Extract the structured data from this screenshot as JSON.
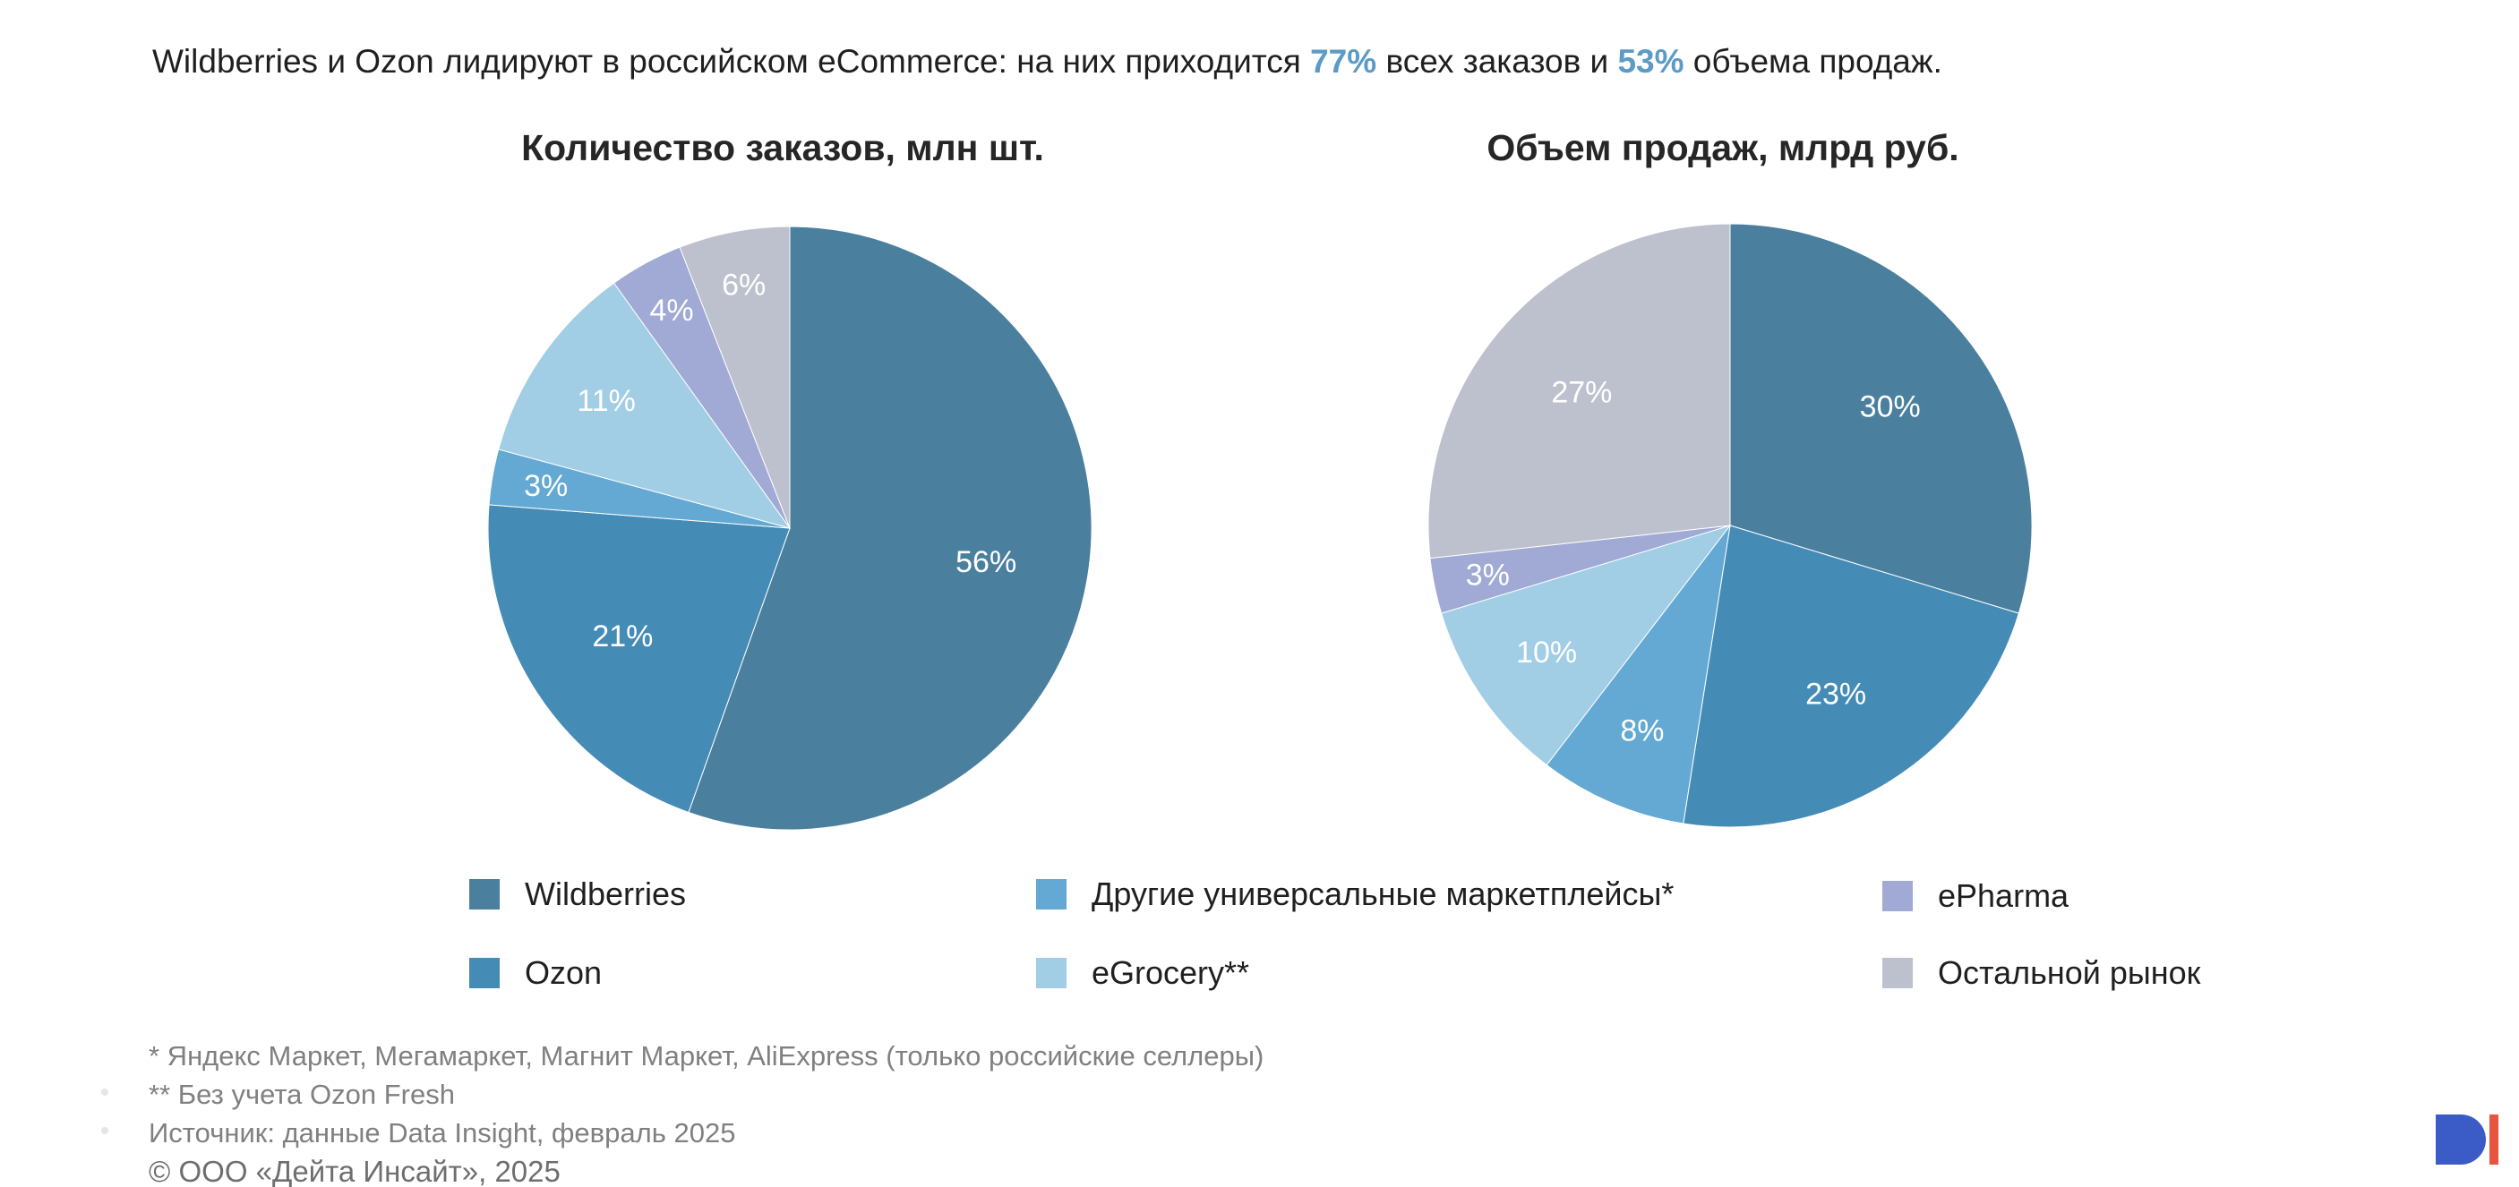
{
  "headline": {
    "pre": "Wildberries и Ozon лидируют в российском eCommerce: на них приходится ",
    "highlight1": "77%",
    "mid": " всех заказов и ",
    "highlight2": "53%",
    "post": " объема продаж."
  },
  "colors": {
    "Wildberries": "#4a7f9e",
    "Ozon": "#448bb6",
    "Other_marketplaces": "#63a9d3",
    "eGrocery": "#a1cde5",
    "ePharma": "#a0aad4",
    "Rest": "#bdc1cd",
    "highlight": "#5b9bc6"
  },
  "legend": {
    "items": [
      {
        "key": "Wildberries",
        "label": "Wildberries"
      },
      {
        "key": "Ozon",
        "label": "Ozon"
      },
      {
        "key": "Other_marketplaces",
        "label": "Другие универсальные маркетплейсы*"
      },
      {
        "key": "eGrocery",
        "label": "eGrocery**"
      },
      {
        "key": "ePharma",
        "label": "ePharma"
      },
      {
        "key": "Rest",
        "label": "Остальной рынок"
      }
    ]
  },
  "chart_data": [
    {
      "type": "pie",
      "title": "Количество заказов, млн шт.",
      "categories": [
        "Wildberries",
        "Ozon",
        "Другие универсальные маркетплейсы*",
        "eGrocery**",
        "ePharma",
        "Остальной рынок"
      ],
      "values": [
        56,
        21,
        3,
        11,
        4,
        6
      ],
      "labels": [
        "56%",
        "21%",
        "3%",
        "11%",
        "4%",
        "6%"
      ],
      "start": "12 o'clock",
      "direction": "clockwise"
    },
    {
      "type": "pie",
      "title": "Объем продаж, млрд руб.",
      "categories": [
        "Wildberries",
        "Ozon",
        "Другие универсальные маркетплейсы*",
        "eGrocery**",
        "ePharma",
        "Остальной рынок"
      ],
      "values": [
        30,
        23,
        8,
        10,
        3,
        27
      ],
      "labels": [
        "30%",
        "23%",
        "8%",
        "10%",
        "3%",
        "27%"
      ],
      "start": "12 o'clock",
      "direction": "clockwise"
    }
  ],
  "footnotes": {
    "line1": "* Яндекс Маркет, Мегамаркет, Магнит Маркет, AliExpress (только российские селлеры)",
    "line2": "** Без учета Ozon Fresh",
    "line3": "Источник: данные Data Insight, февраль 2025",
    "copyright": "© ООО «Дейта Инсайт», 2025"
  },
  "logo": {
    "name": "data-insight-logo",
    "colors": [
      "#3b5bc6",
      "#e8553e"
    ]
  }
}
